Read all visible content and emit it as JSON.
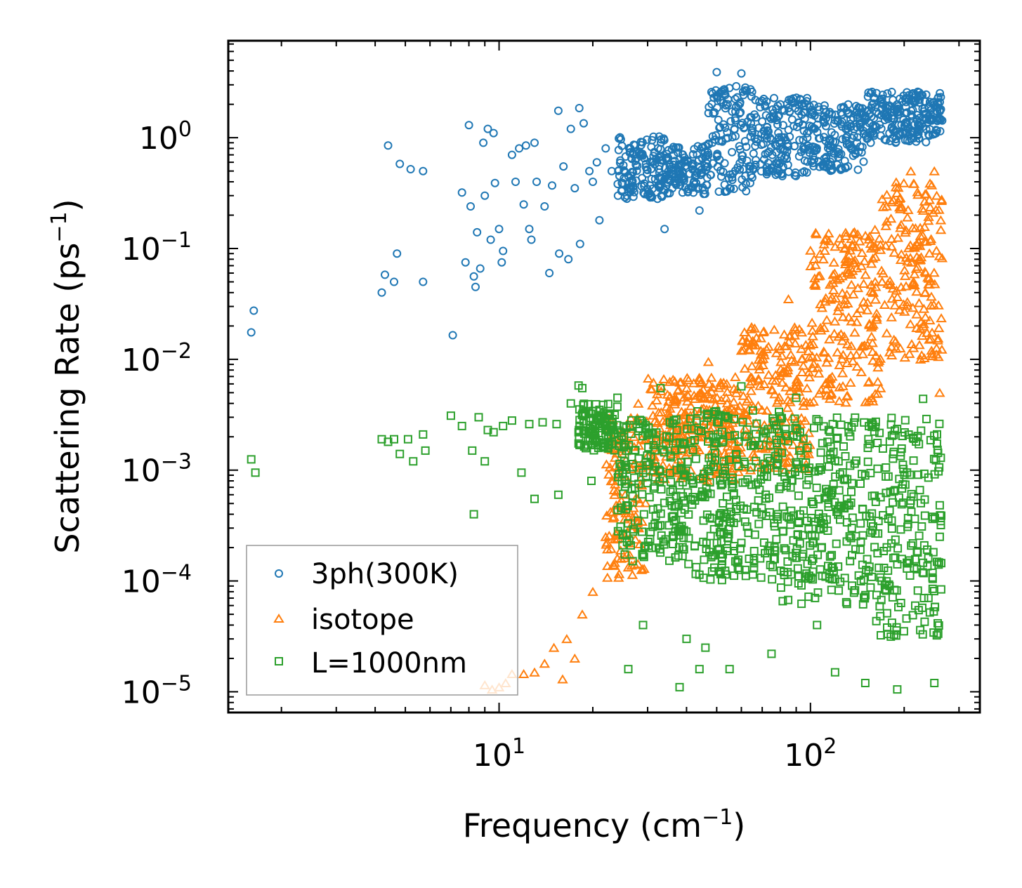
{
  "chart_data": {
    "type": "scatter",
    "xscale": "log",
    "yscale": "log",
    "xlim": [
      1.35,
      350
    ],
    "ylim": [
      6.5e-06,
      7.5
    ],
    "xlabel": {
      "base": "Frequency (cm",
      "sup": "−1",
      "tail": ")"
    },
    "ylabel": {
      "base": "Scattering Rate (ps",
      "sup": "−1",
      "tail": ")"
    },
    "xticks": [
      {
        "value": 10,
        "base": "10",
        "exp": "1"
      },
      {
        "value": 100,
        "base": "10",
        "exp": "2"
      }
    ],
    "yticks": [
      {
        "value": 1,
        "base": "10",
        "exp": "0"
      },
      {
        "value": 0.1,
        "base": "10",
        "exp": "−1"
      },
      {
        "value": 0.01,
        "base": "10",
        "exp": "−2"
      },
      {
        "value": 0.001,
        "base": "10",
        "exp": "−3"
      },
      {
        "value": 0.0001,
        "base": "10",
        "exp": "−4"
      },
      {
        "value": 1e-05,
        "base": "10",
        "exp": "−5"
      }
    ],
    "legend": {
      "position": "lower-left"
    },
    "series": [
      {
        "name": "3ph(300K)",
        "marker": "circle",
        "color": "#1f77b4",
        "points": [
          [
            1.6,
            0.0175
          ],
          [
            1.63,
            0.0275
          ],
          [
            4.2,
            0.04
          ],
          [
            4.3,
            0.058
          ],
          [
            4.4,
            0.85
          ],
          [
            4.6,
            0.05
          ],
          [
            4.7,
            0.09
          ],
          [
            4.8,
            0.58
          ],
          [
            5.2,
            0.52
          ],
          [
            5.7,
            0.5
          ],
          [
            5.7,
            0.05
          ],
          [
            7.1,
            0.0165
          ],
          [
            7.6,
            0.32
          ],
          [
            7.8,
            0.075
          ],
          [
            8.0,
            1.3
          ],
          [
            8.1,
            0.24
          ],
          [
            8.3,
            0.056
          ],
          [
            8.4,
            0.045
          ],
          [
            8.5,
            0.14
          ],
          [
            8.7,
            0.066
          ],
          [
            8.9,
            0.9
          ],
          [
            9.0,
            0.3
          ],
          [
            9.2,
            1.2
          ],
          [
            9.4,
            0.12
          ],
          [
            9.6,
            1.1
          ],
          [
            9.7,
            0.39
          ],
          [
            10.0,
            0.15
          ],
          [
            10.2,
            0.075
          ],
          [
            10.3,
            0.095
          ],
          [
            11.0,
            0.7
          ],
          [
            11.3,
            0.4
          ],
          [
            11.6,
            0.8
          ],
          [
            12.0,
            0.25
          ],
          [
            12.2,
            0.85
          ],
          [
            12.5,
            0.15
          ],
          [
            12.7,
            0.12
          ],
          [
            13.0,
            0.9
          ],
          [
            13.2,
            0.4
          ],
          [
            14.0,
            0.24
          ],
          [
            14.5,
            0.06
          ],
          [
            14.8,
            0.37
          ],
          [
            15.5,
            1.75
          ],
          [
            15.6,
            0.09
          ],
          [
            16.1,
            0.55
          ],
          [
            16.7,
            0.08
          ],
          [
            17.0,
            1.2
          ],
          [
            17.5,
            0.35
          ],
          [
            18.1,
            1.85
          ],
          [
            18.2,
            0.11
          ],
          [
            18.7,
            1.35
          ],
          [
            19.5,
            0.5
          ],
          [
            20.0,
            0.4
          ],
          [
            20.6,
            0.6
          ],
          [
            21.0,
            0.18
          ],
          [
            22.0,
            0.8
          ],
          [
            23.0,
            0.5
          ],
          [
            26.0,
            0.45
          ],
          [
            31.0,
            0.95
          ],
          [
            34.0,
            0.15
          ],
          [
            38.0,
            0.4
          ],
          [
            44.0,
            0.22
          ],
          [
            47.0,
            0.7
          ],
          [
            50.0,
            3.9
          ],
          [
            53.0,
            2.5
          ],
          [
            57.0,
            1.2
          ],
          [
            60.0,
            3.8
          ],
          [
            70.0,
            1.4
          ],
          [
            80.0,
            2.0
          ],
          [
            95.0,
            1.7
          ],
          [
            110.0,
            0.55
          ],
          [
            130.0,
            1.2
          ],
          [
            160.0,
            1.5
          ],
          [
            190.0,
            2.0
          ],
          [
            220.0,
            1.6
          ],
          [
            250.0,
            2.1
          ]
        ],
        "bands": [
          {
            "x": [
              24,
              34
            ],
            "y": [
              0.28,
              1.05
            ]
          },
          {
            "x": [
              34,
              47
            ],
            "y": [
              0.3,
              0.85
            ]
          },
          {
            "x": [
              47,
              66
            ],
            "y": [
              0.32,
              3.2
            ]
          },
          {
            "x": [
              66,
              100
            ],
            "y": [
              0.45,
              2.3
            ]
          },
          {
            "x": [
              100,
              150
            ],
            "y": [
              0.5,
              2.0
            ]
          },
          {
            "x": [
              150,
              265
            ],
            "y": [
              0.9,
              2.6
            ]
          }
        ]
      },
      {
        "name": "isotope",
        "marker": "triangle",
        "color": "#ff7f0e",
        "points": [
          [
            9.0,
            1.15e-05
          ],
          [
            9.5,
            1.05e-05
          ],
          [
            10.0,
            1.1e-05
          ],
          [
            10.5,
            1.2e-05
          ],
          [
            11.0,
            1.45e-05
          ],
          [
            12.0,
            1.45e-05
          ],
          [
            13.0,
            1.5e-05
          ],
          [
            14.0,
            1.8e-05
          ],
          [
            15.0,
            2.5e-05
          ],
          [
            16.0,
            1.3e-05
          ],
          [
            16.5,
            3e-05
          ],
          [
            17.5,
            2e-05
          ],
          [
            18.5,
            5e-05
          ],
          [
            20.0,
            8e-05
          ],
          [
            22.0,
            0.00025
          ],
          [
            23.5,
            0.0006
          ],
          [
            25.0,
            0.002
          ],
          [
            28.0,
            0.004
          ],
          [
            35.0,
            0.003
          ],
          [
            47.0,
            0.0095
          ],
          [
            60.0,
            0.012
          ],
          [
            85.0,
            0.035
          ],
          [
            110.0,
            0.08
          ],
          [
            130.0,
            0.13
          ],
          [
            170.0,
            0.28
          ],
          [
            210.0,
            0.5
          ],
          [
            250.0,
            0.5
          ],
          [
            260.0,
            0.005
          ]
        ],
        "bands": [
          {
            "x": [
              22,
              30
            ],
            "y": [
              0.0001,
              0.003
            ]
          },
          {
            "x": [
              30,
              60
            ],
            "y": [
              0.0008,
              0.007
            ]
          },
          {
            "x": [
              60,
              100
            ],
            "y": [
              0.001,
              0.02
            ]
          },
          {
            "x": [
              100,
              170
            ],
            "y": [
              0.004,
              0.15
            ]
          },
          {
            "x": [
              170,
              265
            ],
            "y": [
              0.01,
              0.4
            ]
          }
        ]
      },
      {
        "name": "L=1000nm",
        "marker": "square",
        "color": "#2ca02c",
        "points": [
          [
            1.6,
            0.00125
          ],
          [
            1.65,
            0.00095
          ],
          [
            4.2,
            0.0019
          ],
          [
            4.4,
            0.0018
          ],
          [
            4.6,
            0.0019
          ],
          [
            4.8,
            0.0014
          ],
          [
            5.1,
            0.0019
          ],
          [
            5.3,
            0.0012
          ],
          [
            5.7,
            0.0021
          ],
          [
            5.8,
            0.0015
          ],
          [
            7.0,
            0.0031
          ],
          [
            7.6,
            0.0025
          ],
          [
            8.2,
            0.0015
          ],
          [
            8.3,
            0.0004
          ],
          [
            8.6,
            0.003
          ],
          [
            9.0,
            0.0012
          ],
          [
            9.2,
            0.0023
          ],
          [
            9.6,
            0.0022
          ],
          [
            10.3,
            0.0025
          ],
          [
            11.0,
            0.0028
          ],
          [
            11.8,
            0.00095
          ],
          [
            12.5,
            0.0026
          ],
          [
            13.0,
            0.00055
          ],
          [
            13.8,
            0.0027
          ],
          [
            15.3,
            0.0026
          ],
          [
            15.5,
            0.0006
          ],
          [
            17.0,
            0.004
          ],
          [
            18.0,
            0.0058
          ],
          [
            18.5,
            0.0055
          ],
          [
            19.8,
            0.0008
          ],
          [
            21.0,
            0.0035
          ],
          [
            22.0,
            0.0025
          ],
          [
            24.0,
            0.0045
          ],
          [
            26.0,
            1.6e-05
          ],
          [
            29.0,
            4e-05
          ],
          [
            33.0,
            0.0055
          ],
          [
            38.0,
            1.1e-05
          ],
          [
            40.0,
            3e-05
          ],
          [
            44.0,
            1.6e-05
          ],
          [
            46.0,
            2.5e-05
          ],
          [
            55.0,
            1.6e-05
          ],
          [
            60.0,
            0.0057
          ],
          [
            75.0,
            2.2e-05
          ],
          [
            90.0,
            0.0045
          ],
          [
            105.0,
            4e-05
          ],
          [
            120.0,
            1.5e-05
          ],
          [
            150.0,
            1.2e-05
          ],
          [
            190.0,
            1.05e-05
          ],
          [
            230.0,
            0.0044
          ],
          [
            250.0,
            1.2e-05
          ]
        ],
        "bands": [
          {
            "x": [
              18,
              24
            ],
            "y": [
              0.0015,
              0.004
            ]
          },
          {
            "x": [
              24,
              40
            ],
            "y": [
              0.00015,
              0.003
            ]
          },
          {
            "x": [
              40,
              80
            ],
            "y": [
              0.0001,
              0.0035
            ]
          },
          {
            "x": [
              80,
              160
            ],
            "y": [
              6e-05,
              0.003
            ]
          },
          {
            "x": [
              160,
              265
            ],
            "y": [
              3e-05,
              0.003
            ]
          }
        ]
      }
    ]
  }
}
